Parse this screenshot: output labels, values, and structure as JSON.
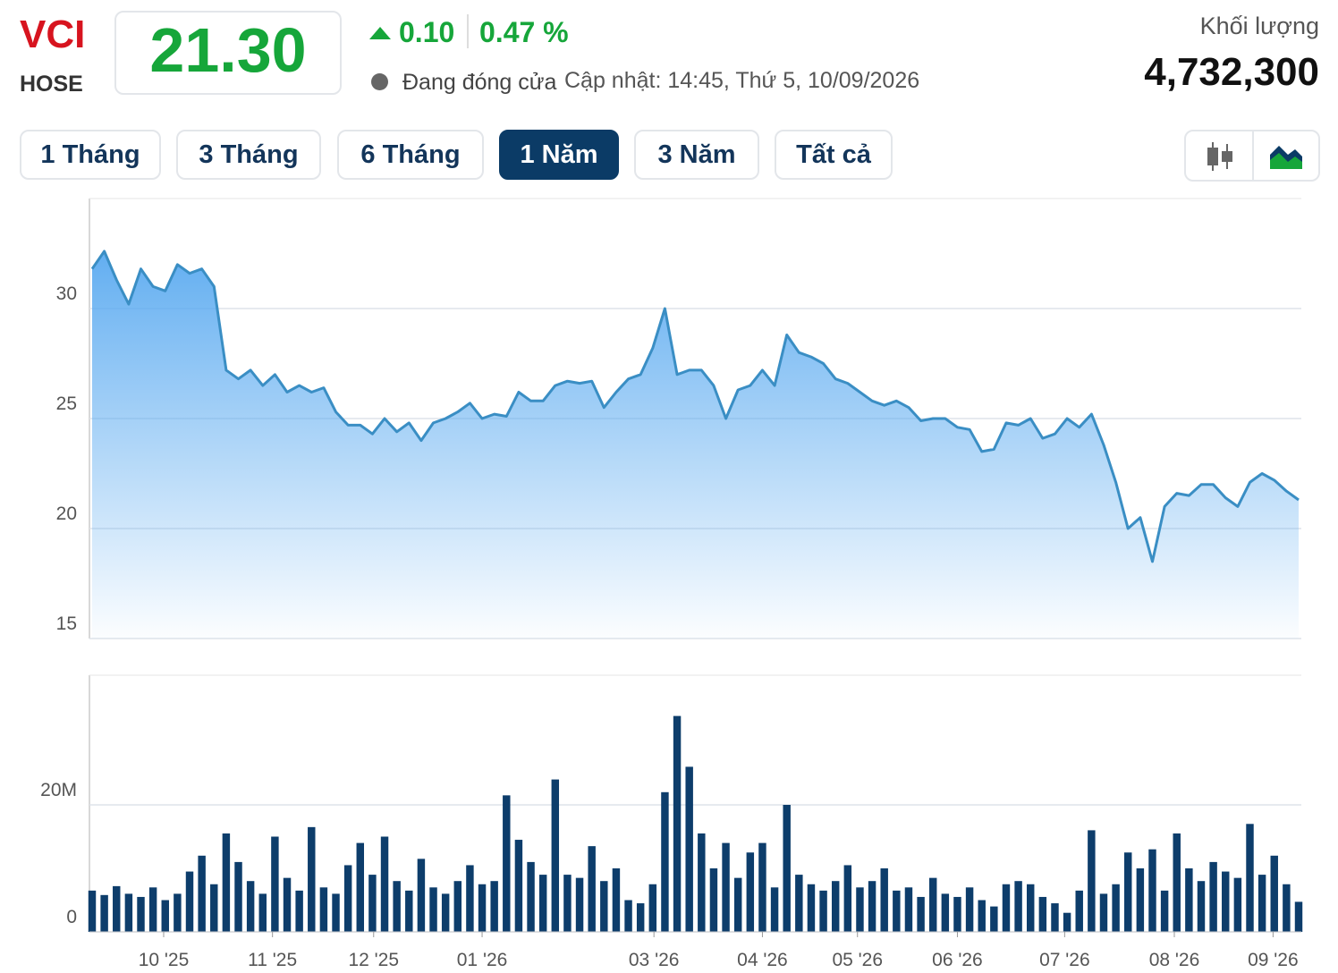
{
  "header": {
    "symbol": "VCI",
    "exchange": "HOSE",
    "price": "21.30",
    "change": "0.10",
    "change_pct": "0.47 %",
    "status": "Đang đóng cửa",
    "updated": "Cập nhật: 14:45, Thứ 5, 10/09/2026",
    "volume_label": "Khối lượng",
    "volume": "4,732,300"
  },
  "range_buttons": [
    "1 Tháng",
    "3 Tháng",
    "6 Tháng",
    "1 Năm",
    "3 Năm",
    "Tất cả"
  ],
  "active_range": "1 Năm",
  "chart_data": [
    {
      "type": "area",
      "color": "#3a8ec4",
      "xlim": [
        0,
        99
      ],
      "ylim": [
        15,
        35
      ],
      "yticks": [
        15,
        20,
        25,
        30
      ],
      "grid": true,
      "values": [
        31.8,
        32.6,
        31.3,
        30.2,
        31.8,
        31.0,
        30.8,
        32.0,
        31.6,
        31.8,
        31.0,
        27.2,
        26.8,
        27.2,
        26.5,
        27.0,
        26.2,
        26.5,
        26.2,
        26.4,
        25.3,
        24.7,
        24.7,
        24.3,
        25.0,
        24.4,
        24.8,
        24.0,
        24.8,
        25.0,
        25.3,
        25.7,
        25.0,
        25.2,
        25.1,
        26.2,
        25.8,
        25.8,
        26.5,
        26.7,
        26.6,
        26.7,
        25.5,
        26.2,
        26.8,
        27.0,
        28.2,
        30.0,
        27.0,
        27.2,
        27.2,
        26.5,
        25.0,
        26.3,
        26.5,
        27.2,
        26.5,
        28.8,
        28.0,
        27.8,
        27.5,
        26.8,
        26.6,
        26.2,
        25.8,
        25.6,
        25.8,
        25.5,
        24.9,
        25.0,
        25.0,
        24.6,
        24.5,
        23.5,
        23.6,
        24.8,
        24.7,
        25.0,
        24.1,
        24.3,
        25.0,
        24.6,
        25.2,
        23.8,
        22.1,
        20.0,
        20.5,
        18.5,
        21.0,
        21.6,
        21.5,
        22.0,
        22.0,
        21.4,
        21.0,
        22.1,
        22.5,
        22.2,
        21.7,
        21.3
      ]
    },
    {
      "type": "bar",
      "color": "#0d3d6b",
      "xlim": [
        0,
        99
      ],
      "ylim": [
        0,
        40000000
      ],
      "yticks": [
        0,
        {
          "value": 20000000,
          "label": "20M"
        }
      ],
      "grid": true,
      "xticks": [
        {
          "value": 5.87,
          "label": "10 '25"
        },
        {
          "value": 14.8,
          "label": "11 '25"
        },
        {
          "value": 23.1,
          "label": "12 '25"
        },
        {
          "value": 32.0,
          "label": "01 '26"
        },
        {
          "value": 46.1,
          "label": "03 '26"
        },
        {
          "value": 55.0,
          "label": "04 '26"
        },
        {
          "value": 62.8,
          "label": "05 '26"
        },
        {
          "value": 71.0,
          "label": "06 '26"
        },
        {
          "value": 79.8,
          "label": "07 '26"
        },
        {
          "value": 88.8,
          "label": "08 '26"
        },
        {
          "value": 96.9,
          "label": "09 '26"
        }
      ],
      "values": [
        6500000,
        5800000,
        7200000,
        6000000,
        5500000,
        7000000,
        5000000,
        6000000,
        9500000,
        12000000,
        7500000,
        15500000,
        11000000,
        8000000,
        6000000,
        15000000,
        8500000,
        6500000,
        16500000,
        7000000,
        6000000,
        10500000,
        14000000,
        9000000,
        15000000,
        8000000,
        6500000,
        11500000,
        7000000,
        6000000,
        8000000,
        10500000,
        7500000,
        8000000,
        21500000,
        14500000,
        11000000,
        9000000,
        24000000,
        9000000,
        8500000,
        13500000,
        8000000,
        10000000,
        5000000,
        4500000,
        7500000,
        22000000,
        34000000,
        26000000,
        15500000,
        10000000,
        14000000,
        8500000,
        12500000,
        14000000,
        7000000,
        20000000,
        9000000,
        7500000,
        6500000,
        8000000,
        10500000,
        7000000,
        8000000,
        10000000,
        6500000,
        7000000,
        5500000,
        8500000,
        6000000,
        5500000,
        7000000,
        5000000,
        4000000,
        7500000,
        8000000,
        7500000,
        5500000,
        4500000,
        3000000,
        6500000,
        16000000,
        6000000,
        7500000,
        12500000,
        10000000,
        13000000,
        6500000,
        15500000,
        10000000,
        8000000,
        11000000,
        9500000,
        8500000,
        17000000,
        9000000,
        12000000,
        7500000,
        4732300
      ]
    }
  ]
}
